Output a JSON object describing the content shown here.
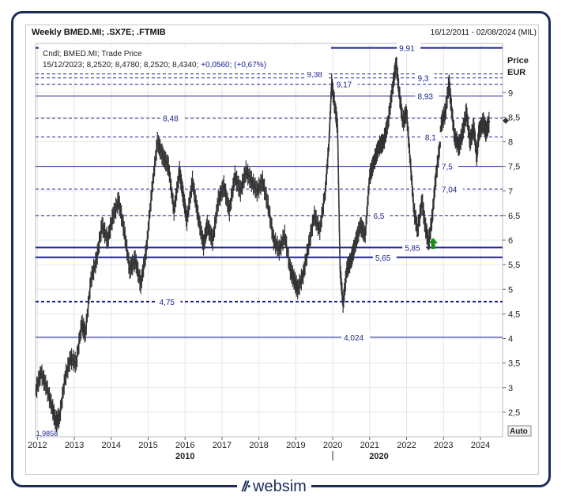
{
  "header": {
    "title": "Weekly BMED.MI; .SX7E; .FTMIB",
    "date_range": "16/12/2011 - 02/08/2024 (MIL)"
  },
  "legend": {
    "line1": "Cndl; BMED.MI; Trade Price",
    "line2_prefix": "15/12/2023; 8,2520; 8,4780; 8,2520; 8,4340; ",
    "line2_change": "+0,0560; (+0,67%)"
  },
  "axis": {
    "y_title_1": "Price",
    "y_title_2": "EUR",
    "auto_label": "Auto",
    "decade_labels": [
      "2010",
      "2020"
    ],
    "min_label": "1,9858"
  },
  "brand": {
    "name": "websim"
  },
  "colors": {
    "line_blue": "#1c2090",
    "candle": "#333333",
    "arrow": "#1a8c1a"
  },
  "chart_data": {
    "type": "line",
    "xlim": [
      2011.95,
      2024.6
    ],
    "ylim": [
      2.0,
      10.0
    ],
    "x_ticks": [
      {
        "v": 2012,
        "label": "2012"
      },
      {
        "v": 2013,
        "label": "2013"
      },
      {
        "v": 2014,
        "label": "2014"
      },
      {
        "v": 2015,
        "label": "2015"
      },
      {
        "v": 2016,
        "label": "2016"
      },
      {
        "v": 2017,
        "label": "2017"
      },
      {
        "v": 2018,
        "label": "2018"
      },
      {
        "v": 2019,
        "label": "2019"
      },
      {
        "v": 2020,
        "label": "2020"
      },
      {
        "v": 2021,
        "label": "2021"
      },
      {
        "v": 2022,
        "label": "2022"
      },
      {
        "v": 2023,
        "label": "2023"
      },
      {
        "v": 2024,
        "label": "2024"
      }
    ],
    "y_ticks": [
      {
        "v": 2.5,
        "label": "2,5"
      },
      {
        "v": 3,
        "label": "3"
      },
      {
        "v": 3.5,
        "label": "3,5"
      },
      {
        "v": 4,
        "label": "4"
      },
      {
        "v": 4.5,
        "label": "4,5"
      },
      {
        "v": 5,
        "label": "5"
      },
      {
        "v": 5.5,
        "label": "5,5"
      },
      {
        "v": 6,
        "label": "6"
      },
      {
        "v": 6.5,
        "label": "6,5"
      },
      {
        "v": 7,
        "label": "7"
      },
      {
        "v": 7.5,
        "label": "7,5"
      },
      {
        "v": 8,
        "label": "8"
      },
      {
        "v": 8.5,
        "label": "8,5"
      },
      {
        "v": 9,
        "label": "9"
      }
    ],
    "levels": [
      {
        "value": 9.91,
        "label": "9,91",
        "style": "solid-thick",
        "label_x": 2021.8
      },
      {
        "value": 9.38,
        "label": "9,38",
        "style": "dashed",
        "label_x": 2019.3
      },
      {
        "value": 9.3,
        "label": "9,3",
        "style": "dashed",
        "label_x": 2022.3
      },
      {
        "value": 9.17,
        "label": "9,17",
        "style": "dashed",
        "label_x": 2020.1
      },
      {
        "value": 8.93,
        "label": "8,93",
        "style": "solid",
        "label_x": 2022.3
      },
      {
        "value": 8.48,
        "label": "8,48",
        "style": "dashed",
        "label_x": 2015.4
      },
      {
        "value": 8.1,
        "label": "8,1",
        "style": "dashed",
        "label_x": 2022.5
      },
      {
        "value": 7.5,
        "label": "7,5",
        "style": "solid",
        "label_x": 2022.95
      },
      {
        "value": 7.04,
        "label": "7,04",
        "style": "dashed",
        "label_x": 2022.95
      },
      {
        "value": 6.5,
        "label": "6,5",
        "style": "dashed",
        "label_x": 2021.1
      },
      {
        "value": 5.85,
        "label": "5,85",
        "style": "solid-thick",
        "label_x": 2021.95
      },
      {
        "value": 5.65,
        "label": "5,65",
        "style": "solid-thick",
        "label_x": 2021.15
      },
      {
        "value": 4.75,
        "label": "4,75",
        "style": "dashed-thick",
        "label_x": 2015.3
      },
      {
        "value": 4.024,
        "label": "4,024",
        "style": "solid",
        "label_x": 2020.3
      }
    ],
    "series": [
      {
        "points": [
          [
            2011.96,
            2.95
          ],
          [
            2012.1,
            3.3
          ],
          [
            2012.25,
            3.0
          ],
          [
            2012.4,
            2.6
          ],
          [
            2012.5,
            2.3
          ],
          [
            2012.6,
            2.4
          ],
          [
            2012.75,
            3.2
          ],
          [
            2012.9,
            3.6
          ],
          [
            2013.05,
            3.5
          ],
          [
            2013.2,
            4.3
          ],
          [
            2013.3,
            4.1
          ],
          [
            2013.45,
            5.2
          ],
          [
            2013.6,
            5.6
          ],
          [
            2013.75,
            6.3
          ],
          [
            2013.9,
            6.0
          ],
          [
            2014.05,
            6.5
          ],
          [
            2014.2,
            6.8
          ],
          [
            2014.35,
            6.2
          ],
          [
            2014.5,
            5.4
          ],
          [
            2014.65,
            5.6
          ],
          [
            2014.8,
            5.1
          ],
          [
            2014.95,
            5.8
          ],
          [
            2015.1,
            7.0
          ],
          [
            2015.25,
            8.0
          ],
          [
            2015.4,
            7.7
          ],
          [
            2015.55,
            7.5
          ],
          [
            2015.7,
            6.6
          ],
          [
            2015.85,
            7.4
          ],
          [
            2015.95,
            6.9
          ],
          [
            2016.05,
            6.4
          ],
          [
            2016.2,
            7.2
          ],
          [
            2016.35,
            6.5
          ],
          [
            2016.5,
            5.9
          ],
          [
            2016.6,
            6.3
          ],
          [
            2016.75,
            6.0
          ],
          [
            2016.9,
            6.8
          ],
          [
            2017.05,
            7.1
          ],
          [
            2017.2,
            6.6
          ],
          [
            2017.35,
            7.3
          ],
          [
            2017.5,
            7.0
          ],
          [
            2017.65,
            7.4
          ],
          [
            2017.8,
            7.2
          ],
          [
            2017.95,
            7.0
          ],
          [
            2018.1,
            7.2
          ],
          [
            2018.25,
            6.7
          ],
          [
            2018.4,
            6.0
          ],
          [
            2018.55,
            5.8
          ],
          [
            2018.7,
            6.1
          ],
          [
            2018.85,
            5.4
          ],
          [
            2018.95,
            5.2
          ],
          [
            2019.05,
            5.0
          ],
          [
            2019.2,
            5.3
          ],
          [
            2019.35,
            5.9
          ],
          [
            2019.5,
            6.5
          ],
          [
            2019.65,
            6.2
          ],
          [
            2019.8,
            7.0
          ],
          [
            2019.9,
            8.0
          ],
          [
            2019.97,
            9.2
          ],
          [
            2020.08,
            8.6
          ],
          [
            2020.13,
            8.3
          ],
          [
            2020.2,
            5.4
          ],
          [
            2020.28,
            4.7
          ],
          [
            2020.38,
            5.4
          ],
          [
            2020.5,
            5.6
          ],
          [
            2020.6,
            5.9
          ],
          [
            2020.75,
            6.3
          ],
          [
            2020.88,
            6.1
          ],
          [
            2021.0,
            7.3
          ],
          [
            2021.12,
            7.6
          ],
          [
            2021.25,
            7.9
          ],
          [
            2021.38,
            8.0
          ],
          [
            2021.5,
            8.4
          ],
          [
            2021.62,
            9.1
          ],
          [
            2021.72,
            9.6
          ],
          [
            2021.8,
            9.0
          ],
          [
            2021.9,
            8.4
          ],
          [
            2022.0,
            8.6
          ],
          [
            2022.1,
            7.6
          ],
          [
            2022.2,
            6.6
          ],
          [
            2022.3,
            6.2
          ],
          [
            2022.42,
            6.8
          ],
          [
            2022.5,
            6.3
          ],
          [
            2022.6,
            5.95
          ],
          [
            2022.7,
            6.5
          ],
          [
            2022.78,
            7.2
          ],
          [
            2022.88,
            7.8
          ],
          [
            2022.95,
            8.4
          ],
          [
            2023.05,
            8.6
          ],
          [
            2023.15,
            9.2
          ],
          [
            2023.2,
            8.8
          ],
          [
            2023.3,
            8.1
          ],
          [
            2023.42,
            7.9
          ],
          [
            2023.52,
            8.2
          ],
          [
            2023.62,
            8.6
          ],
          [
            2023.72,
            8.0
          ],
          [
            2023.82,
            8.3
          ],
          [
            2023.9,
            7.7
          ],
          [
            2023.96,
            8.2
          ],
          [
            2024.08,
            8.4
          ],
          [
            2024.15,
            8.2
          ],
          [
            2024.25,
            8.43
          ]
        ]
      }
    ],
    "min_point": {
      "x": 2012.05,
      "y": 1.9858
    },
    "last_marker": {
      "x": 2024.6,
      "y": 8.43
    },
    "signal_arrow": {
      "x": 2022.72,
      "y": 5.95,
      "direction": "up"
    }
  }
}
